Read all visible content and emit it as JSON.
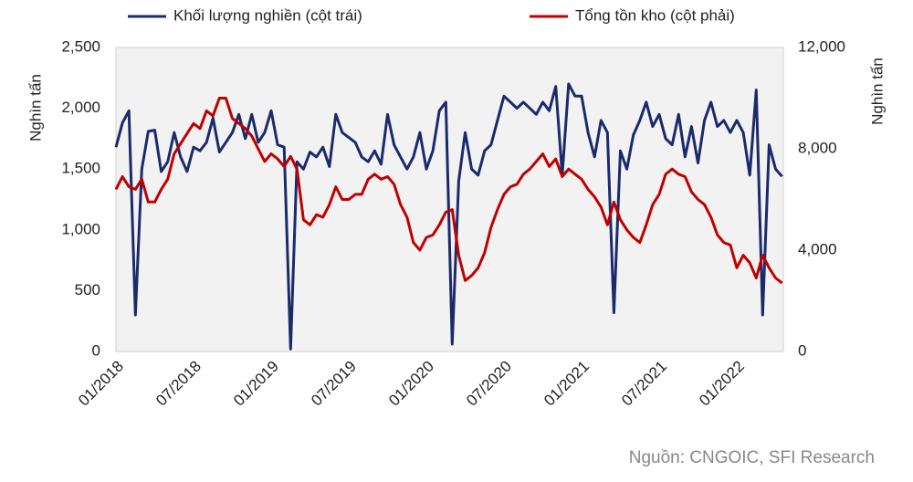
{
  "chart_data": {
    "type": "line",
    "categories": [
      "01/2018",
      null,
      null,
      null,
      null,
      null,
      null,
      null,
      null,
      null,
      null,
      null,
      "07/2018",
      null,
      null,
      null,
      null,
      null,
      null,
      null,
      null,
      null,
      null,
      null,
      "01/2019",
      null,
      null,
      null,
      null,
      null,
      null,
      null,
      null,
      null,
      null,
      null,
      "07/2019",
      null,
      null,
      null,
      null,
      null,
      null,
      null,
      null,
      null,
      null,
      null,
      "01/2020",
      null,
      null,
      null,
      null,
      null,
      null,
      null,
      null,
      null,
      null,
      null,
      "07/2020",
      null,
      null,
      null,
      null,
      null,
      null,
      null,
      null,
      null,
      null,
      null,
      "01/2021",
      null,
      null,
      null,
      null,
      null,
      null,
      null,
      null,
      null,
      null,
      null,
      "07/2021",
      null,
      null,
      null,
      null,
      null,
      null,
      null,
      null,
      null,
      null,
      null,
      "01/2022",
      null,
      null,
      null,
      null,
      null,
      null,
      null
    ],
    "series": [
      {
        "name": "Khối lượng nghiền (cột trái)",
        "color": "#1b2a6b",
        "values": [
          1680,
          1880,
          1980,
          300,
          1500,
          1810,
          1820,
          1480,
          1560,
          1800,
          1600,
          1480,
          1680,
          1650,
          1720,
          1920,
          1640,
          1720,
          1800,
          1950,
          1750,
          1950,
          1720,
          1800,
          1980,
          1700,
          1680,
          20,
          1560,
          1500,
          1640,
          1600,
          1680,
          1520,
          1950,
          1800,
          1760,
          1720,
          1600,
          1560,
          1650,
          1540,
          1950,
          1700,
          1600,
          1500,
          1600,
          1800,
          1500,
          1650,
          1980,
          2050,
          60,
          1400,
          1800,
          1500,
          1450,
          1650,
          1700,
          1900,
          2100,
          2050,
          2000,
          2050,
          2000,
          1950,
          2050,
          1980,
          2180,
          1450,
          2200,
          2100,
          2100,
          1800,
          1600,
          1900,
          1800,
          320,
          1650,
          1500,
          1780,
          1900,
          2050,
          1850,
          1950,
          1750,
          1700,
          1950,
          1600,
          1850,
          1550,
          1900,
          2050,
          1850,
          1900,
          1800,
          1900,
          1800,
          1450,
          2150,
          300,
          1700,
          1500,
          1440
        ]
      },
      {
        "name": "Tổng tồn kho (cột phải)",
        "color": "#c00000",
        "axis": "y2",
        "values": [
          6400,
          6900,
          6500,
          6400,
          6800,
          5900,
          5900,
          6400,
          6800,
          7800,
          8200,
          8600,
          9000,
          8800,
          9500,
          9300,
          10000,
          10000,
          9200,
          9000,
          8800,
          8500,
          8000,
          7500,
          7800,
          7600,
          7300,
          7700,
          7200,
          5200,
          5000,
          5400,
          5300,
          5800,
          6500,
          6000,
          6000,
          6200,
          6200,
          6800,
          7000,
          6800,
          6900,
          6600,
          5800,
          5300,
          4300,
          4000,
          4500,
          4600,
          5000,
          5500,
          5600,
          3800,
          2800,
          3000,
          3300,
          3900,
          4900,
          5600,
          6200,
          6500,
          6600,
          7000,
          7200,
          7500,
          7800,
          7300,
          7600,
          6900,
          7200,
          7000,
          6800,
          6400,
          6100,
          5700,
          5000,
          5900,
          5200,
          4800,
          4500,
          4300,
          5000,
          5800,
          6200,
          7000,
          7200,
          7000,
          6900,
          6300,
          6000,
          5800,
          5300,
          4600,
          4300,
          4200,
          3300,
          3800,
          3500,
          2900,
          3800,
          3300,
          2900,
          2700
        ]
      }
    ],
    "ylabel": "Nghìn tấn",
    "y2label": "Nghìn tấn",
    "ylim": [
      0,
      2500
    ],
    "yticks": [
      0,
      500,
      {
        "value": 1000,
        "label": "1,000"
      },
      {
        "value": 1500,
        "label": "1,500"
      },
      {
        "value": 2000,
        "label": "2,000"
      },
      {
        "value": 2500,
        "label": "2,500"
      }
    ],
    "y2lim": [
      0,
      12000
    ],
    "y2ticks": [
      0,
      {
        "value": 4000,
        "label": "4,000"
      },
      {
        "value": 8000,
        "label": "8,000"
      },
      {
        "value": 12000,
        "label": "12,000"
      }
    ],
    "source": "Nguồn: CNGOIC, SFI Research"
  }
}
